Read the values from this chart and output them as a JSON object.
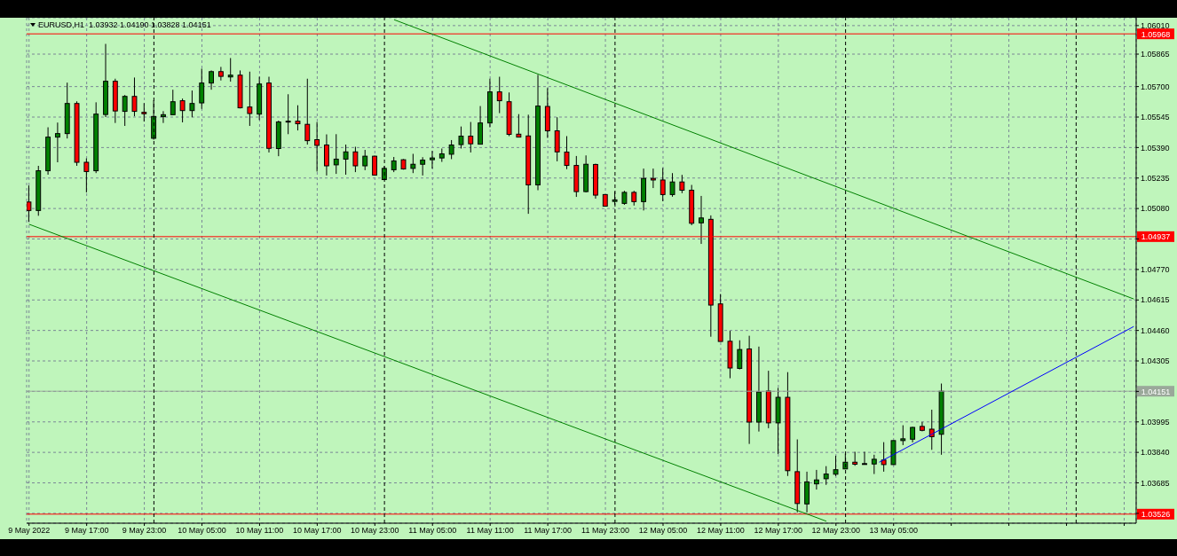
{
  "chart_data": {
    "type": "candlestick",
    "title": "EURUSD,H1  1.03932 1.04190 1.03828 1.04151",
    "x": [
      "2022-05-09T11:00",
      "2022-05-09T12:00",
      "2022-05-09T13:00",
      "2022-05-09T14:00",
      "2022-05-09T15:00",
      "2022-05-09T16:00",
      "2022-05-09T17:00",
      "2022-05-09T18:00",
      "2022-05-09T19:00",
      "2022-05-09T20:00",
      "2022-05-09T21:00",
      "2022-05-09T22:00",
      "2022-05-09T23:00",
      "2022-05-10T00:00",
      "2022-05-10T01:00",
      "2022-05-10T02:00",
      "2022-05-10T03:00",
      "2022-05-10T04:00",
      "2022-05-10T05:00",
      "2022-05-10T06:00",
      "2022-05-10T07:00",
      "2022-05-10T08:00",
      "2022-05-10T09:00",
      "2022-05-10T10:00",
      "2022-05-10T11:00",
      "2022-05-10T12:00",
      "2022-05-10T13:00",
      "2022-05-10T14:00",
      "2022-05-10T15:00",
      "2022-05-10T16:00",
      "2022-05-10T17:00",
      "2022-05-10T18:00",
      "2022-05-10T19:00",
      "2022-05-10T20:00",
      "2022-05-10T21:00",
      "2022-05-10T22:00",
      "2022-05-10T23:00",
      "2022-05-11T00:00",
      "2022-05-11T01:00",
      "2022-05-11T02:00",
      "2022-05-11T03:00",
      "2022-05-11T04:00",
      "2022-05-11T05:00",
      "2022-05-11T06:00",
      "2022-05-11T07:00",
      "2022-05-11T08:00",
      "2022-05-11T09:00",
      "2022-05-11T10:00",
      "2022-05-11T11:00",
      "2022-05-11T12:00",
      "2022-05-11T13:00",
      "2022-05-11T14:00",
      "2022-05-11T15:00",
      "2022-05-11T16:00",
      "2022-05-11T17:00",
      "2022-05-11T18:00",
      "2022-05-11T19:00",
      "2022-05-11T20:00",
      "2022-05-11T21:00",
      "2022-05-11T22:00",
      "2022-05-11T23:00",
      "2022-05-12T00:00",
      "2022-05-12T01:00",
      "2022-05-12T02:00",
      "2022-05-12T03:00",
      "2022-05-12T04:00",
      "2022-05-12T05:00",
      "2022-05-12T06:00",
      "2022-05-12T07:00",
      "2022-05-12T08:00",
      "2022-05-12T09:00",
      "2022-05-12T10:00",
      "2022-05-12T11:00",
      "2022-05-12T12:00",
      "2022-05-12T13:00",
      "2022-05-12T14:00",
      "2022-05-12T15:00",
      "2022-05-12T16:00",
      "2022-05-12T17:00",
      "2022-05-12T18:00",
      "2022-05-12T19:00",
      "2022-05-12T20:00",
      "2022-05-12T21:00",
      "2022-05-12T22:00",
      "2022-05-12T23:00",
      "2022-05-13T00:00",
      "2022-05-13T01:00",
      "2022-05-13T02:00",
      "2022-05-13T03:00",
      "2022-05-13T04:00",
      "2022-05-13T05:00",
      "2022-05-13T06:00",
      "2022-05-13T07:00",
      "2022-05-13T08:00",
      "2022-05-13T09:00",
      "2022-05-13T10:00"
    ],
    "ohlc": [
      [
        1.05113,
        1.05197,
        1.05013,
        1.0507
      ],
      [
        1.0507,
        1.05297,
        1.05043,
        1.05272
      ],
      [
        1.05272,
        1.05493,
        1.05252,
        1.05443
      ],
      [
        1.05443,
        1.05517,
        1.05315,
        1.05461
      ],
      [
        1.05461,
        1.0572,
        1.05436,
        1.05614
      ],
      [
        1.05614,
        1.05625,
        1.05297,
        1.05315
      ],
      [
        1.05315,
        1.05335,
        1.05162,
        1.05268
      ],
      [
        1.05272,
        1.0562,
        1.0526,
        1.0556
      ],
      [
        1.05558,
        1.05917,
        1.05545,
        1.05727
      ],
      [
        1.05727,
        1.0574,
        1.05515,
        1.05576
      ],
      [
        1.05574,
        1.05657,
        1.055,
        1.0565
      ],
      [
        1.0565,
        1.05746,
        1.05549,
        1.05574
      ],
      [
        1.05569,
        1.05616,
        1.05522,
        1.05562
      ],
      [
        1.05437,
        1.0563,
        1.0543,
        1.05548
      ],
      [
        1.05547,
        1.05575,
        1.05515,
        1.05557
      ],
      [
        1.05557,
        1.05684,
        1.05557,
        1.05623
      ],
      [
        1.05628,
        1.05639,
        1.05518,
        1.05578
      ],
      [
        1.05578,
        1.0568,
        1.05544,
        1.05614
      ],
      [
        1.05617,
        1.05791,
        1.05587,
        1.05718
      ],
      [
        1.05718,
        1.05782,
        1.05684,
        1.05776
      ],
      [
        1.05776,
        1.058,
        1.05731,
        1.05752
      ],
      [
        1.05749,
        1.05845,
        1.05725,
        1.05758
      ],
      [
        1.05758,
        1.05782,
        1.05589,
        1.05592
      ],
      [
        1.05596,
        1.05776,
        1.055,
        1.05563
      ],
      [
        1.0556,
        1.0575,
        1.0553,
        1.05713
      ],
      [
        1.05718,
        1.0575,
        1.05365,
        1.05386
      ],
      [
        1.05385,
        1.05527,
        1.05346,
        1.0552
      ],
      [
        1.0552,
        1.05661,
        1.05458,
        1.05524
      ],
      [
        1.05524,
        1.05605,
        1.05477,
        1.05511
      ],
      [
        1.05508,
        1.0574,
        1.05405,
        1.05425
      ],
      [
        1.0543,
        1.0552,
        1.05268,
        1.05401
      ],
      [
        1.05403,
        1.05457,
        1.05248,
        1.05297
      ],
      [
        1.05302,
        1.05458,
        1.05256,
        1.05331
      ],
      [
        1.05331,
        1.05405,
        1.05252,
        1.05368
      ],
      [
        1.05368,
        1.05394,
        1.05265,
        1.05297
      ],
      [
        1.05297,
        1.05378,
        1.05275,
        1.05346
      ],
      [
        1.05346,
        1.05349,
        1.0525,
        1.0525
      ],
      [
        1.05227,
        1.05295,
        1.05225,
        1.05284
      ],
      [
        1.05277,
        1.05342,
        1.05265,
        1.05322
      ],
      [
        1.05328,
        1.05331,
        1.05278,
        1.05281
      ],
      [
        1.05284,
        1.05358,
        1.0526,
        1.05305
      ],
      [
        1.05305,
        1.05341,
        1.05248,
        1.05326
      ],
      [
        1.05328,
        1.05373,
        1.05283,
        1.05337
      ],
      [
        1.05337,
        1.05385,
        1.05317,
        1.05358
      ],
      [
        1.05356,
        1.05428,
        1.05331,
        1.05403
      ],
      [
        1.05405,
        1.05497,
        1.05385,
        1.05448
      ],
      [
        1.05448,
        1.0552,
        1.05365,
        1.05409
      ],
      [
        1.05407,
        1.05601,
        1.05407,
        1.05515
      ],
      [
        1.05515,
        1.0574,
        1.05493,
        1.05673
      ],
      [
        1.05673,
        1.0575,
        1.05565,
        1.05628
      ],
      [
        1.05623,
        1.0567,
        1.05448,
        1.05457
      ],
      [
        1.05458,
        1.0556,
        1.05443,
        1.05443
      ],
      [
        1.05449,
        1.05557,
        1.05053,
        1.052
      ],
      [
        1.052,
        1.0576,
        1.05173,
        1.05601
      ],
      [
        1.05599,
        1.05692,
        1.05439,
        1.05475
      ],
      [
        1.05475,
        1.05544,
        1.0532,
        1.05368
      ],
      [
        1.05367,
        1.05448,
        1.0528,
        1.05299
      ],
      [
        1.05299,
        1.05347,
        1.05139,
        1.05166
      ],
      [
        1.05166,
        1.0535,
        1.05162,
        1.05305
      ],
      [
        1.05304,
        1.05308,
        1.0513,
        1.05148
      ],
      [
        1.05151,
        1.05151,
        1.05092,
        1.05092
      ],
      [
        1.05116,
        1.05166,
        1.05099,
        1.05124
      ],
      [
        1.05106,
        1.0517,
        1.05099,
        1.05162
      ],
      [
        1.05162,
        1.0517,
        1.05095,
        1.05115
      ],
      [
        1.05115,
        1.05283,
        1.0507,
        1.05233
      ],
      [
        1.05233,
        1.05283,
        1.05184,
        1.05225
      ],
      [
        1.05225,
        1.05286,
        1.05117,
        1.05151
      ],
      [
        1.05151,
        1.0526,
        1.0514,
        1.05215
      ],
      [
        1.05215,
        1.05251,
        1.05158,
        1.05173
      ],
      [
        1.05173,
        1.052,
        1.04995,
        1.05005
      ],
      [
        1.05007,
        1.05144,
        1.049,
        1.05032
      ],
      [
        1.05025,
        1.05045,
        1.04428,
        1.04589
      ],
      [
        1.04595,
        1.04645,
        1.04404,
        1.04404
      ],
      [
        1.04405,
        1.04458,
        1.04217,
        1.04269
      ],
      [
        1.04267,
        1.0441,
        1.04262,
        1.04363
      ],
      [
        1.04366,
        1.04433,
        1.03883,
        1.03994
      ],
      [
        1.03994,
        1.04378,
        1.03946,
        1.04147
      ],
      [
        1.04152,
        1.04255,
        1.03963,
        1.0399
      ],
      [
        1.0399,
        1.04168,
        1.03832,
        1.0412
      ],
      [
        1.0412,
        1.04248,
        1.0372,
        1.03747
      ],
      [
        1.03742,
        1.03906,
        1.03535,
        1.0358
      ],
      [
        1.03578,
        1.03742,
        1.03535,
        1.0369
      ],
      [
        1.0368,
        1.03751,
        1.03651,
        1.037
      ],
      [
        1.03706,
        1.0377,
        1.03675,
        1.0373
      ],
      [
        1.03729,
        1.03823,
        1.0372,
        1.03752
      ],
      [
        1.03756,
        1.03834,
        1.03756,
        1.0379
      ],
      [
        1.0379,
        1.03843,
        1.03772,
        1.0378
      ],
      [
        1.0378,
        1.03843,
        1.0378,
        1.03783
      ],
      [
        1.03781,
        1.03828,
        1.0373,
        1.03805
      ],
      [
        1.03801,
        1.03892,
        1.03742,
        1.03778
      ],
      [
        1.03778,
        1.039,
        1.03778,
        1.039
      ],
      [
        1.039,
        1.03978,
        1.03877,
        1.03909
      ],
      [
        1.03907,
        1.0397,
        1.03891,
        1.03967
      ],
      [
        1.03972,
        1.03995,
        1.03947,
        1.03952
      ],
      [
        1.03958,
        1.04057,
        1.03853,
        1.0392
      ],
      [
        1.03932,
        1.0419,
        1.03828,
        1.04151
      ]
    ],
    "colors": [
      "#ff0000",
      "#008000",
      "#008000",
      "#008000",
      "#008000",
      "#ff0000",
      "#ff0000",
      "#008000",
      "#008000",
      "#ff0000",
      "#008000",
      "#ff0000",
      "#ff0000",
      "#008000",
      "#008000",
      "#008000",
      "#ff0000",
      "#008000",
      "#008000",
      "#008000",
      "#ff0000",
      "#008000",
      "#ff0000",
      "#ff0000",
      "#008000",
      "#ff0000",
      "#008000",
      "#008000",
      "#ff0000",
      "#ff0000",
      "#ff0000",
      "#ff0000",
      "#008000",
      "#008000",
      "#ff0000",
      "#008000",
      "#ff0000",
      "#008000",
      "#008000",
      "#ff0000",
      "#008000",
      "#008000",
      "#008000",
      "#008000",
      "#008000",
      "#008000",
      "#ff0000",
      "#008000",
      "#008000",
      "#ff0000",
      "#ff0000",
      "#ff0000",
      "#ff0000",
      "#008000",
      "#ff0000",
      "#ff0000",
      "#ff0000",
      "#ff0000",
      "#008000",
      "#ff0000",
      "#ff0000",
      "#008000",
      "#008000",
      "#ff0000",
      "#008000",
      "#ff0000",
      "#ff0000",
      "#008000",
      "#ff0000",
      "#ff0000",
      "#008000",
      "#ff0000",
      "#ff0000",
      "#ff0000",
      "#008000",
      "#ff0000",
      "#008000",
      "#ff0000",
      "#008000",
      "#ff0000",
      "#ff0000",
      "#008000",
      "#008000",
      "#008000",
      "#008000",
      "#008000",
      "#ff0000",
      "#008000",
      "#008000",
      "#ff0000",
      "#008000",
      "#008000",
      "#008000",
      "#ff0000",
      "#ff0000",
      "#008000"
    ],
    "series": [
      {
        "type": "line",
        "x": [
          "2022-05-11T01:00",
          "2022-05-14T06:00"
        ],
        "values": [
          1.0604,
          1.0462
        ],
        "color": "#008000"
      },
      {
        "type": "line",
        "x": [
          "2022-05-09T11:00",
          "2022-05-12T22:00"
        ],
        "values": [
          1.05,
          1.0349
        ],
        "color": "#008000"
      },
      {
        "type": "line",
        "x": [
          "2022-05-13T03:30",
          "2022-05-14T06:00"
        ],
        "values": [
          1.0379,
          1.0448
        ],
        "color": "#0000ff"
      }
    ],
    "xlim": [
      "2022-05-09T10:45",
      "2022-05-14T06:15"
    ],
    "xticks": [
      {
        "value": "2022-05-09T11:00",
        "label": "9 May 2022"
      },
      {
        "value": "2022-05-09T17:00",
        "label": "9 May 17:00"
      },
      {
        "value": "2022-05-09T23:00",
        "label": "9 May 23:00"
      },
      {
        "value": "2022-05-10T05:00",
        "label": "10 May 05:00"
      },
      {
        "value": "2022-05-10T11:00",
        "label": "10 May 11:00"
      },
      {
        "value": "2022-05-10T17:00",
        "label": "10 May 17:00"
      },
      {
        "value": "2022-05-10T23:00",
        "label": "10 May 23:00"
      },
      {
        "value": "2022-05-11T05:00",
        "label": "11 May 05:00"
      },
      {
        "value": "2022-05-11T11:00",
        "label": "11 May 11:00"
      },
      {
        "value": "2022-05-11T17:00",
        "label": "11 May 17:00"
      },
      {
        "value": "2022-05-11T23:00",
        "label": "11 May 23:00"
      },
      {
        "value": "2022-05-12T05:00",
        "label": "12 May 05:00"
      },
      {
        "value": "2022-05-12T11:00",
        "label": "12 May 11:00"
      },
      {
        "value": "2022-05-12T17:00",
        "label": "12 May 17:00"
      },
      {
        "value": "2022-05-12T23:00",
        "label": "12 May 23:00"
      },
      {
        "value": "2022-05-13T05:00",
        "label": "13 May 05:00"
      },
      {
        "value": "2022-05-13T11:00",
        "label": null
      },
      {
        "value": "2022-05-13T17:00",
        "label": null
      },
      {
        "value": "2022-05-13T23:00",
        "label": null
      },
      {
        "value": "2022-05-14T05:00",
        "label": null
      }
    ],
    "ylim": [
      1.0348,
      1.0605
    ],
    "yticks": [
      {
        "value": 1.0601,
        "label": "1.06010"
      },
      1.05865,
      {
        "value": 1.057,
        "label": "1.05700"
      },
      1.05545,
      {
        "value": 1.0539,
        "label": "1.05390"
      },
      1.05235,
      {
        "value": 1.0508,
        "label": "1.05080"
      },
      {
        "value": 1.04925,
        "label": null
      },
      {
        "value": 1.0477,
        "label": "1.04770"
      },
      1.04615,
      {
        "value": 1.0446,
        "label": "1.04460"
      },
      1.04305,
      {
        "value": 1.0415,
        "label": null
      },
      1.03995,
      {
        "value": 1.0384,
        "label": "1.03840"
      },
      1.03685,
      {
        "value": 1.0353,
        "label": null
      }
    ],
    "grid": true,
    "ref_lines": [
      {
        "axis": "y",
        "value": 1.05968,
        "label": "1.05968",
        "color": "#ff0000"
      },
      {
        "axis": "y",
        "value": 1.04937,
        "label": "1.04937",
        "color": "#ff0000"
      },
      {
        "axis": "y",
        "value": 1.03526,
        "label": "1.03526",
        "color": "#ff0000"
      },
      {
        "axis": "y",
        "value": 1.04151,
        "label": "1.04151",
        "color": "#9aa89a"
      },
      {
        "axis": "x",
        "value": "2022-05-10T00:00",
        "color": "#000000",
        "line_style": "dashed"
      },
      {
        "axis": "x",
        "value": "2022-05-11T00:00",
        "color": "#000000",
        "line_style": "dashed"
      },
      {
        "axis": "x",
        "value": "2022-05-12T00:00",
        "color": "#000000",
        "line_style": "dashed"
      },
      {
        "axis": "x",
        "value": "2022-05-13T00:00",
        "color": "#000000",
        "line_style": "dashed"
      },
      {
        "axis": "x",
        "value": "2022-05-14T00:00",
        "color": "#000000",
        "line_style": "dashed"
      }
    ]
  }
}
